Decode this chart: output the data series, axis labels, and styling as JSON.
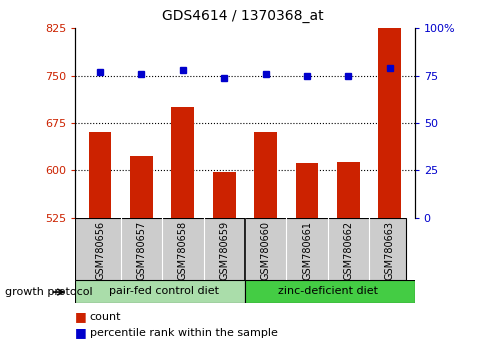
{
  "title": "GDS4614 / 1370368_at",
  "samples": [
    "GSM780656",
    "GSM780657",
    "GSM780658",
    "GSM780659",
    "GSM780660",
    "GSM780661",
    "GSM780662",
    "GSM780663"
  ],
  "counts": [
    660,
    622,
    700,
    597,
    660,
    612,
    613,
    830
  ],
  "percentiles": [
    77,
    76,
    78,
    74,
    76,
    75,
    75,
    79
  ],
  "ylim_left": [
    525,
    825
  ],
  "ylim_right": [
    0,
    100
  ],
  "yticks_left": [
    525,
    600,
    675,
    750,
    825
  ],
  "yticks_right": [
    0,
    25,
    50,
    75,
    100
  ],
  "ytick_labels_right": [
    "0",
    "25",
    "50",
    "75",
    "100%"
  ],
  "bar_color": "#cc2200",
  "dot_color": "#0000cc",
  "group1_label": "pair-fed control diet",
  "group2_label": "zinc-deficient diet",
  "group1_bg": "#aaddaa",
  "group2_bg": "#44cc44",
  "protocol_label": "growth protocol",
  "legend_count_label": "count",
  "legend_pct_label": "percentile rank within the sample",
  "gridline_color": "#000000",
  "tick_label_color_left": "#cc2200",
  "tick_label_color_right": "#0000cc",
  "xlabel_area_bg": "#cccccc",
  "figsize": [
    4.85,
    3.54
  ],
  "dpi": 100
}
